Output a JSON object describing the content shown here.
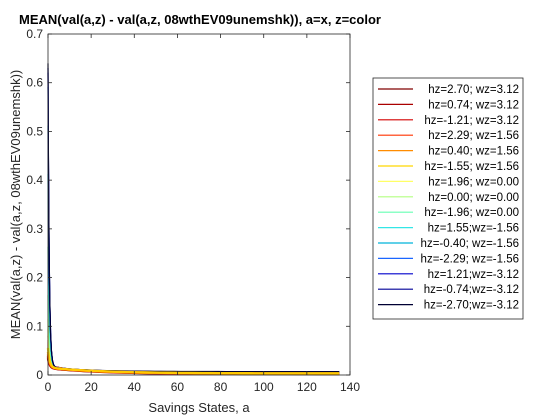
{
  "chart_data": {
    "type": "line",
    "title": "MEAN(val(a,z) - val(a,z, 08wthEV09unemshk)), a=x, z=color",
    "xlabel": "Savings States, a",
    "ylabel": "MEAN(val(a,z) - val(a,z, 08wthEV09unemshk))",
    "xlim": [
      0,
      140
    ],
    "ylim": [
      0,
      0.7
    ],
    "xticks": [
      0,
      20,
      40,
      60,
      80,
      100,
      120,
      140
    ],
    "yticks": [
      0,
      0.1,
      0.2,
      0.3,
      0.4,
      0.5,
      0.6,
      0.7
    ],
    "grid": false,
    "legend_position": "right-outside",
    "x_start": 0,
    "x_end": 135,
    "series": [
      {
        "name": "hz=2.70; wz=3.12",
        "color": "#800000",
        "y0": 0.04,
        "y_tail": 0.002
      },
      {
        "name": "hz=0.74; wz=3.12",
        "color": "#aa0000",
        "y0": 0.045,
        "y_tail": 0.0022
      },
      {
        "name": "hz=-1.21; wz=3.12",
        "color": "#d40000",
        "y0": 0.05,
        "y_tail": 0.0025
      },
      {
        "name": "hz=2.29; wz=1.56",
        "color": "#ff3300",
        "y0": 0.055,
        "y_tail": 0.0028
      },
      {
        "name": "hz=0.40; wz=1.56",
        "color": "#ff8c00",
        "y0": 0.065,
        "y_tail": 0.003
      },
      {
        "name": "hz=-1.55; wz=1.56",
        "color": "#ffd700",
        "y0": 0.08,
        "y_tail": 0.0033
      },
      {
        "name": "hz=1.96; wz=0.00",
        "color": "#ffff66",
        "y0": 0.1,
        "y_tail": 0.0036
      },
      {
        "name": "hz=0.00; wz=0.00",
        "color": "#b3ff80",
        "y0": 0.15,
        "y_tail": 0.004
      },
      {
        "name": "hz=-1.96; wz=0.00",
        "color": "#66ffb3",
        "y0": 0.25,
        "y_tail": 0.0045
      },
      {
        "name": "hz=1.55;wz=-1.56",
        "color": "#33e6e6",
        "y0": 0.4,
        "y_tail": 0.005
      },
      {
        "name": "hz=-0.40; wz=-1.56",
        "color": "#00b3d9",
        "y0": 0.5,
        "y_tail": 0.0055
      },
      {
        "name": "hz=-2.29; wz=-1.56",
        "color": "#1a66ff",
        "y0": 0.58,
        "y_tail": 0.006
      },
      {
        "name": "hz=1.21;wz=-3.12",
        "color": "#0000cc",
        "y0": 0.61,
        "y_tail": 0.0063
      },
      {
        "name": "hz=-0.74;wz=-3.12",
        "color": "#000099",
        "y0": 0.62,
        "y_tail": 0.0066
      },
      {
        "name": "hz=-2.70;wz=-3.12",
        "color": "#000033",
        "y0": 0.63,
        "y_tail": 0.007
      }
    ]
  }
}
